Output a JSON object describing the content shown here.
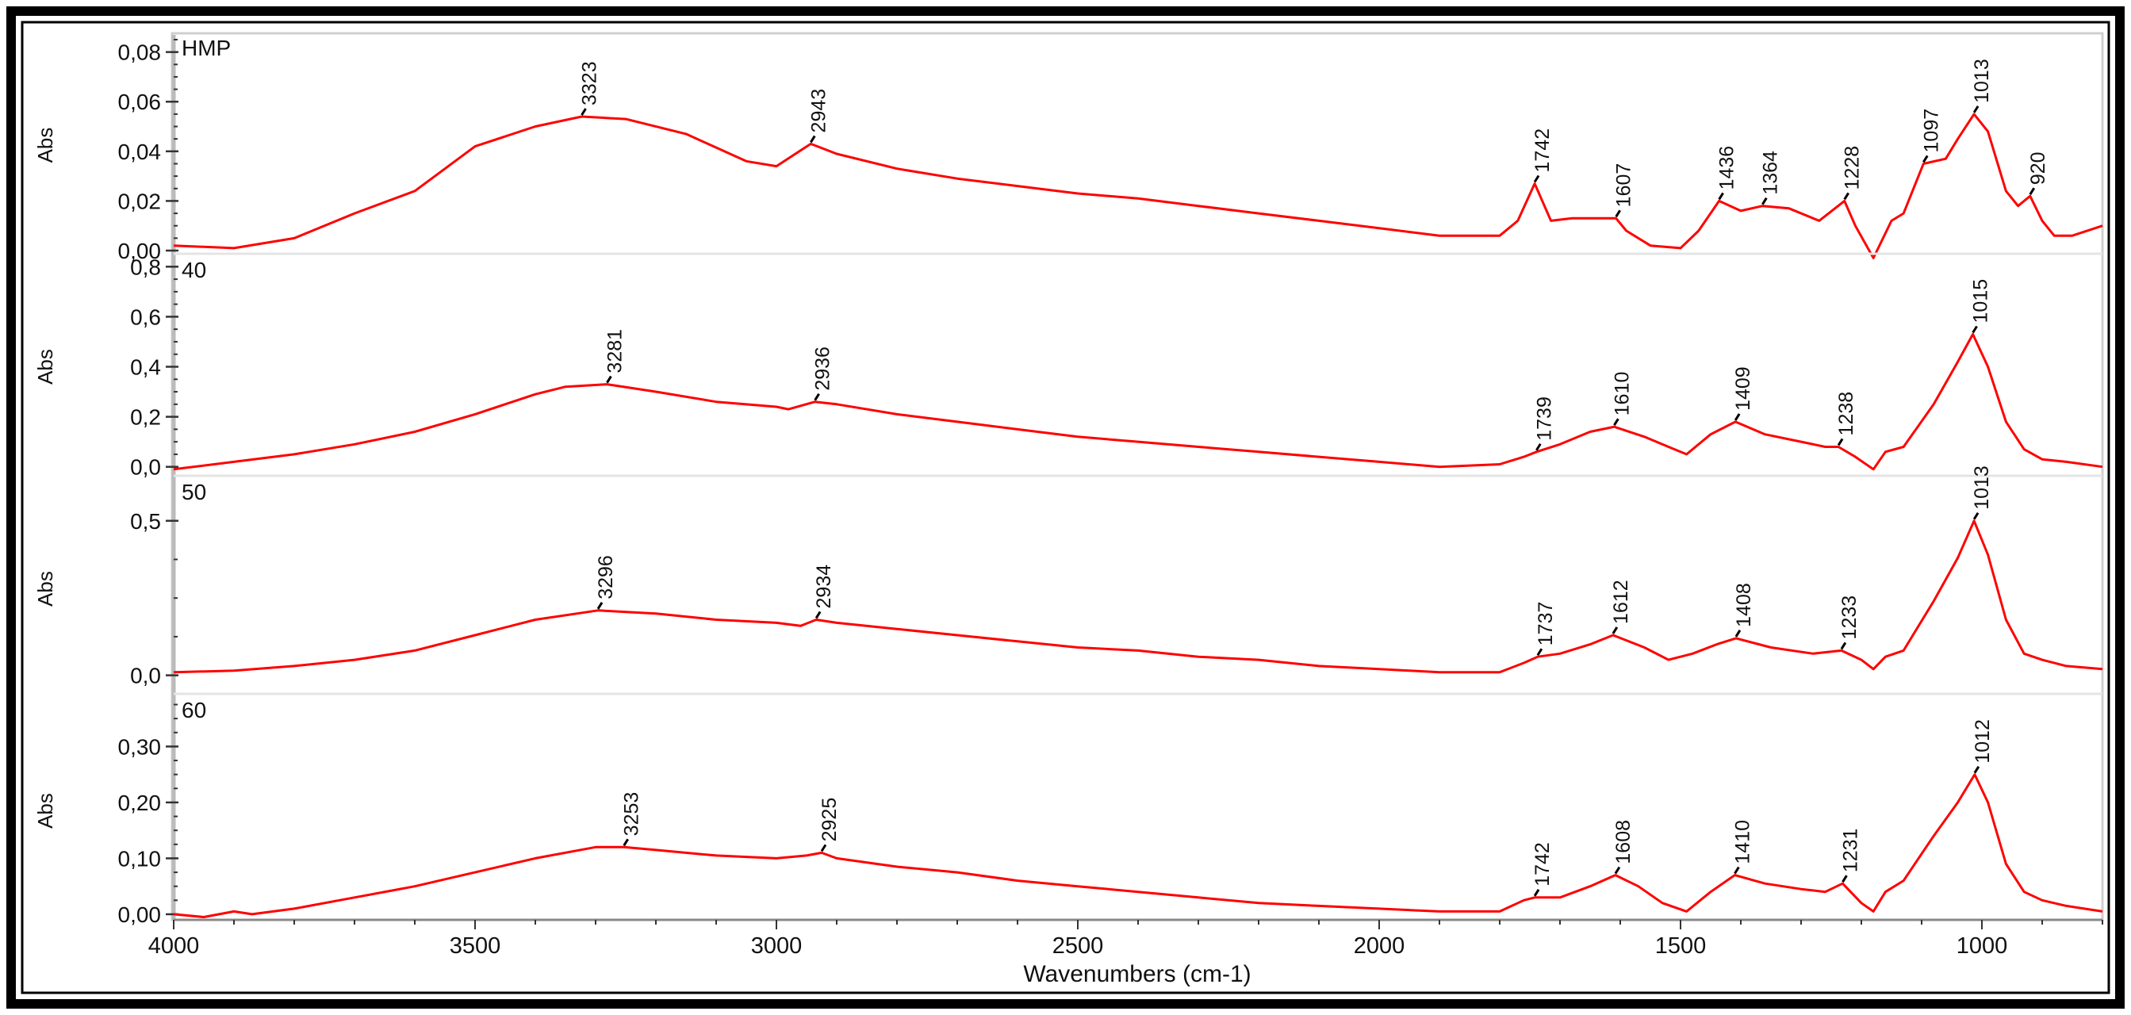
{
  "figure": {
    "x_axis_label": "Wavenumbers (cm-1)",
    "x_ticks": [
      "4000",
      "3500",
      "3000",
      "2500",
      "2000",
      "1500",
      "1000"
    ],
    "line_color": "#ff0000",
    "frame_color": "#000000"
  },
  "chart_data": [
    {
      "type": "line",
      "panel_label": "HMP",
      "ylabel": "Abs",
      "xlim": [
        4000,
        800
      ],
      "ylim": [
        0.0,
        0.085
      ],
      "y_ticks": [
        "0,00",
        "0,02",
        "0,04",
        "0,06",
        "0,08"
      ],
      "y_tick_values": [
        0.0,
        0.02,
        0.04,
        0.06,
        0.08
      ],
      "x": [
        4000,
        3900,
        3800,
        3700,
        3600,
        3500,
        3400,
        3323,
        3250,
        3150,
        3050,
        3000,
        2943,
        2900,
        2800,
        2700,
        2600,
        2500,
        2400,
        2300,
        2200,
        2100,
        2000,
        1900,
        1800,
        1770,
        1742,
        1715,
        1680,
        1607,
        1590,
        1550,
        1500,
        1470,
        1436,
        1400,
        1364,
        1320,
        1270,
        1228,
        1210,
        1180,
        1150,
        1130,
        1097,
        1060,
        1040,
        1013,
        990,
        960,
        940,
        920,
        900,
        880,
        850,
        800
      ],
      "values": [
        0.002,
        0.001,
        0.005,
        0.015,
        0.024,
        0.042,
        0.05,
        0.054,
        0.053,
        0.047,
        0.036,
        0.034,
        0.043,
        0.039,
        0.033,
        0.029,
        0.026,
        0.023,
        0.021,
        0.018,
        0.015,
        0.012,
        0.009,
        0.006,
        0.006,
        0.012,
        0.027,
        0.012,
        0.013,
        0.013,
        0.008,
        0.002,
        0.001,
        0.008,
        0.02,
        0.016,
        0.018,
        0.017,
        0.012,
        0.02,
        0.01,
        -0.003,
        0.012,
        0.015,
        0.035,
        0.037,
        0.045,
        0.055,
        0.048,
        0.024,
        0.018,
        0.022,
        0.012,
        0.006,
        0.006,
        0.01
      ],
      "peak_labels": [
        "3323",
        "2943",
        "1742",
        "1607",
        "1436",
        "1364",
        "1228",
        "1097",
        "1013",
        "920"
      ],
      "peak_x": [
        3323,
        2943,
        1742,
        1607,
        1436,
        1364,
        1228,
        1097,
        1013,
        920
      ]
    },
    {
      "type": "line",
      "panel_label": "40",
      "ylabel": "Abs",
      "xlim": [
        4000,
        800
      ],
      "ylim": [
        -0.02,
        0.82
      ],
      "y_ticks": [
        "0,0",
        "0,2",
        "0,4",
        "0,6",
        "0,8"
      ],
      "y_tick_values": [
        0.0,
        0.2,
        0.4,
        0.6,
        0.8
      ],
      "x": [
        4000,
        3900,
        3800,
        3700,
        3600,
        3500,
        3400,
        3350,
        3281,
        3200,
        3100,
        3000,
        2980,
        2936,
        2900,
        2800,
        2700,
        2600,
        2500,
        2400,
        2300,
        2200,
        2100,
        2000,
        1900,
        1800,
        1760,
        1739,
        1700,
        1650,
        1610,
        1560,
        1520,
        1490,
        1450,
        1409,
        1360,
        1300,
        1260,
        1238,
        1210,
        1180,
        1160,
        1130,
        1080,
        1040,
        1015,
        990,
        960,
        930,
        900,
        860,
        800
      ],
      "values": [
        -0.01,
        0.02,
        0.05,
        0.09,
        0.14,
        0.21,
        0.29,
        0.32,
        0.33,
        0.3,
        0.26,
        0.24,
        0.23,
        0.26,
        0.25,
        0.21,
        0.18,
        0.15,
        0.12,
        0.1,
        0.08,
        0.06,
        0.04,
        0.02,
        0.0,
        0.01,
        0.04,
        0.06,
        0.09,
        0.14,
        0.16,
        0.12,
        0.08,
        0.05,
        0.13,
        0.18,
        0.13,
        0.1,
        0.08,
        0.08,
        0.04,
        -0.01,
        0.06,
        0.08,
        0.25,
        0.42,
        0.53,
        0.4,
        0.18,
        0.07,
        0.03,
        0.02,
        0.0
      ],
      "peak_labels": [
        "3281",
        "2936",
        "1739",
        "1610",
        "1409",
        "1238",
        "1015"
      ],
      "peak_x": [
        3281,
        2936,
        1739,
        1610,
        1409,
        1238,
        1015
      ]
    },
    {
      "type": "line",
      "panel_label": "50",
      "ylabel": "Abs",
      "xlim": [
        4000,
        800
      ],
      "ylim": [
        -0.06,
        0.62
      ],
      "y_ticks": [
        "0,0",
        "0,5"
      ],
      "y_tick_values": [
        0.0,
        0.5
      ],
      "x": [
        4000,
        3900,
        3800,
        3700,
        3600,
        3500,
        3400,
        3296,
        3200,
        3100,
        3000,
        2960,
        2934,
        2900,
        2800,
        2700,
        2600,
        2500,
        2400,
        2300,
        2200,
        2100,
        2000,
        1900,
        1800,
        1760,
        1737,
        1700,
        1650,
        1612,
        1560,
        1520,
        1480,
        1440,
        1408,
        1350,
        1280,
        1233,
        1200,
        1180,
        1160,
        1130,
        1080,
        1040,
        1013,
        990,
        960,
        930,
        900,
        860,
        800
      ],
      "values": [
        0.01,
        0.015,
        0.03,
        0.05,
        0.08,
        0.13,
        0.18,
        0.21,
        0.2,
        0.18,
        0.17,
        0.16,
        0.18,
        0.17,
        0.15,
        0.13,
        0.11,
        0.09,
        0.08,
        0.06,
        0.05,
        0.03,
        0.02,
        0.01,
        0.01,
        0.04,
        0.06,
        0.07,
        0.1,
        0.13,
        0.09,
        0.05,
        0.07,
        0.1,
        0.12,
        0.09,
        0.07,
        0.08,
        0.05,
        0.02,
        0.06,
        0.08,
        0.24,
        0.38,
        0.5,
        0.39,
        0.18,
        0.07,
        0.05,
        0.03,
        0.02
      ],
      "peak_labels": [
        "3296",
        "2934",
        "1737",
        "1612",
        "1408",
        "1233",
        "1013"
      ],
      "peak_x": [
        3296,
        2934,
        1737,
        1612,
        1408,
        1233,
        1013
      ]
    },
    {
      "type": "line",
      "panel_label": "60",
      "ylabel": "Abs",
      "xlim": [
        4000,
        800
      ],
      "ylim": [
        -0.01,
        0.38
      ],
      "y_ticks": [
        "0,00",
        "0,10",
        "0,20",
        "0,30"
      ],
      "y_tick_values": [
        0.0,
        0.1,
        0.2,
        0.3
      ],
      "x": [
        4000,
        3950,
        3900,
        3870,
        3800,
        3700,
        3600,
        3500,
        3400,
        3300,
        3253,
        3200,
        3100,
        3000,
        2950,
        2925,
        2900,
        2800,
        2700,
        2600,
        2500,
        2400,
        2300,
        2200,
        2100,
        2000,
        1900,
        1800,
        1760,
        1742,
        1700,
        1650,
        1608,
        1570,
        1530,
        1490,
        1450,
        1410,
        1360,
        1300,
        1260,
        1231,
        1200,
        1180,
        1160,
        1130,
        1080,
        1040,
        1012,
        990,
        960,
        930,
        900,
        860,
        800
      ],
      "values": [
        0.0,
        -0.005,
        0.005,
        0.0,
        0.01,
        0.03,
        0.05,
        0.075,
        0.1,
        0.12,
        0.12,
        0.115,
        0.105,
        0.1,
        0.105,
        0.11,
        0.1,
        0.085,
        0.075,
        0.06,
        0.05,
        0.04,
        0.03,
        0.02,
        0.015,
        0.01,
        0.005,
        0.005,
        0.025,
        0.03,
        0.03,
        0.05,
        0.07,
        0.05,
        0.02,
        0.005,
        0.04,
        0.07,
        0.055,
        0.045,
        0.04,
        0.055,
        0.02,
        0.005,
        0.04,
        0.06,
        0.14,
        0.2,
        0.25,
        0.2,
        0.09,
        0.04,
        0.025,
        0.015,
        0.005
      ],
      "peak_labels": [
        "3253",
        "2925",
        "1742",
        "1608",
        "1410",
        "1231",
        "1012"
      ],
      "peak_x": [
        3253,
        2925,
        1742,
        1608,
        1410,
        1231,
        1012
      ]
    }
  ]
}
